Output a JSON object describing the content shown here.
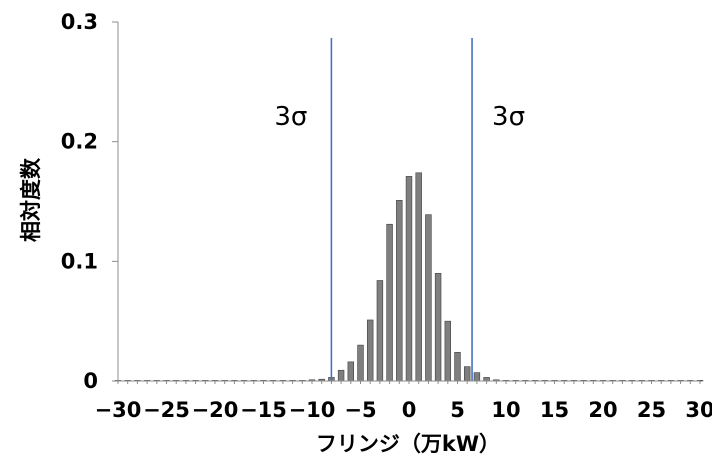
{
  "chart_data": {
    "type": "bar",
    "title": "",
    "xlabel": "フリンジ（万kW）",
    "ylabel": "相対度数",
    "xlim": [
      -30,
      30
    ],
    "ylim": [
      0,
      0.3
    ],
    "xticks": [
      "-30",
      "-25",
      "-20",
      "-15",
      "-10",
      "-5",
      "0",
      "5",
      "10",
      "15",
      "20",
      "25",
      "30"
    ],
    "yticks": [
      "0",
      "0.1",
      "0.2",
      "0.3"
    ],
    "grid": false,
    "legend": "none",
    "bar_color": "#7f7f7f",
    "bars": {
      "x": [
        -30,
        -29,
        -28,
        -27,
        -26,
        -25,
        -24,
        -23,
        -22,
        -21,
        -20,
        -19,
        -18,
        -17,
        -16,
        -15,
        -14,
        -13,
        -12,
        -11,
        -10,
        -9,
        -8,
        -7,
        -6,
        -5,
        -4,
        -3,
        -2,
        -1,
        0,
        1,
        2,
        3,
        4,
        5,
        6,
        7,
        8,
        9,
        10,
        11,
        12,
        13,
        14,
        15,
        16,
        17,
        18,
        19,
        20,
        21,
        22,
        23,
        24,
        25,
        26,
        27,
        28,
        29,
        30
      ],
      "values": [
        0,
        0,
        0,
        0,
        0,
        0,
        0,
        0,
        0,
        0,
        0,
        0,
        0,
        0,
        0,
        0,
        0,
        0,
        0,
        0.0005,
        0.001,
        0.0015,
        0.003,
        0.009,
        0.016,
        0.03,
        0.051,
        0.084,
        0.131,
        0.151,
        0.171,
        0.174,
        0.139,
        0.09,
        0.05,
        0.024,
        0.012,
        0.007,
        0.003,
        0.001,
        0.0005,
        0,
        0,
        0,
        0,
        0,
        0,
        0,
        0,
        0,
        0,
        0,
        0,
        0,
        0,
        0,
        0,
        0,
        0,
        0,
        0
      ]
    },
    "reference_lines": [
      {
        "x": -8,
        "label": "3σ",
        "color": "#4472c4"
      },
      {
        "x": 6.5,
        "label": "3σ",
        "color": "#4472c4"
      }
    ]
  }
}
